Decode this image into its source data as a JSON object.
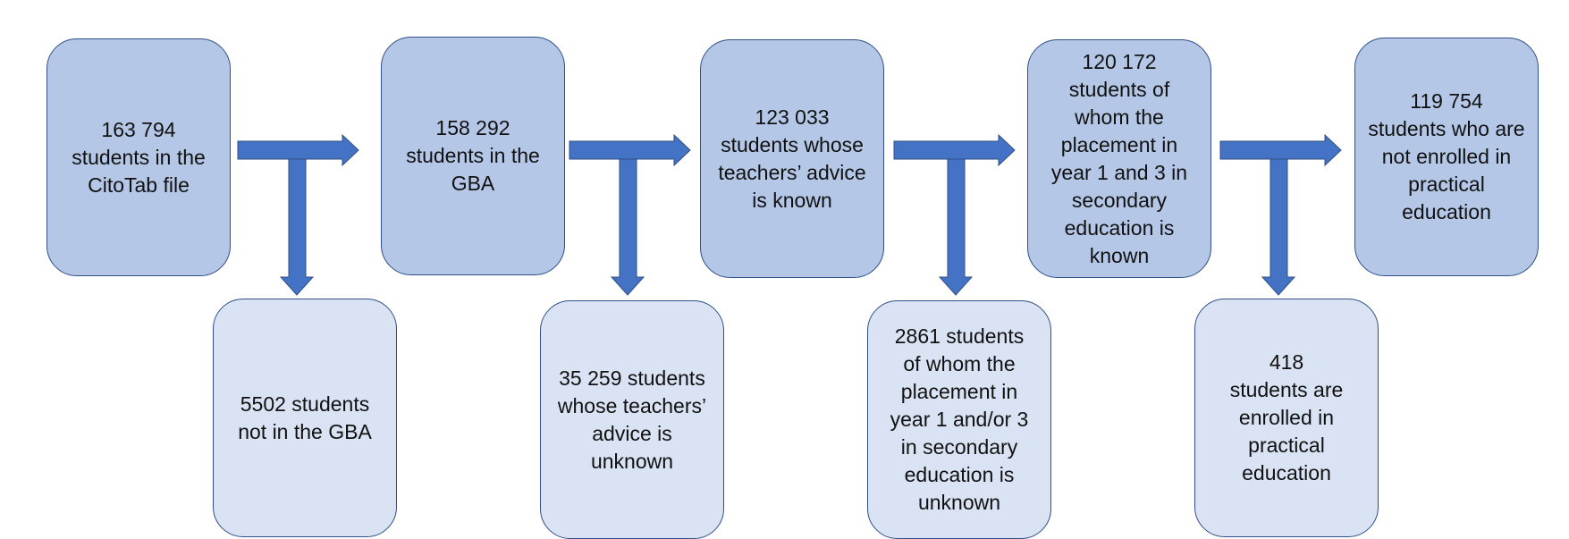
{
  "colors": {
    "main_box_fill": "#b4c7e7",
    "excluded_box_fill": "#dae3f3",
    "box_border": "#2f4f86",
    "arrow": "#4472c4"
  },
  "steps": [
    {
      "text": "163 794\nstudents in the\nCitoTab file"
    },
    {
      "text": "158 292\nstudents in the\nGBA"
    },
    {
      "text": "123 033\nstudents whose\nteachers’ advice\nis known"
    },
    {
      "text": "120 172\nstudents of\nwhom the\nplacement in\nyear 1 and 3 in\nsecondary\neducation is\nknown"
    },
    {
      "text": "119 754\nstudents who are\nnot enrolled in\npractical\neducation"
    }
  ],
  "exclusions": [
    {
      "text": "5502 students\nnot in the GBA"
    },
    {
      "text": "35 259 students\nwhose teachers’\nadvice is\nunknown"
    },
    {
      "text": "2861 students\nof whom the\nplacement in\nyear 1 and/or 3\nin secondary\neducation is\nunknown"
    },
    {
      "text": "418\nstudents are\nenrolled in\npractical\neducation"
    }
  ]
}
